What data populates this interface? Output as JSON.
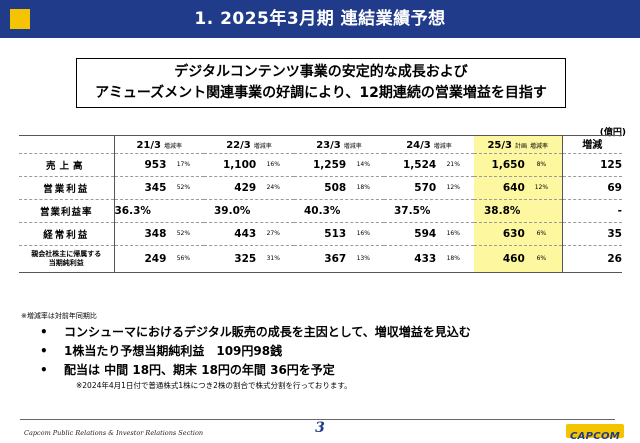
{
  "header": {
    "title": "1.  2025年3月期 連結業績予想",
    "accent": "#1f3b8a",
    "marker": "#f5c400"
  },
  "headline": {
    "line1": "デジタルコンテンツ事業の安定的な成長および",
    "line2": "アミューズメント関連事業の好調により、12期連続の営業増益を目指す"
  },
  "table": {
    "unit": "(億円)",
    "columns": [
      {
        "year": "21/3",
        "suffix": "増減率"
      },
      {
        "year": "22/3",
        "suffix": "増減率"
      },
      {
        "year": "23/3",
        "suffix": "増減率"
      },
      {
        "year": "24/3",
        "suffix": "増減率"
      },
      {
        "year": "25/3",
        "suffix": "計画",
        "suffix2": "増減率"
      }
    ],
    "diff_header": "増減",
    "rows": [
      {
        "label": "売上高",
        "cells": [
          [
            "953",
            "17%"
          ],
          [
            "1,100",
            "16%"
          ],
          [
            "1,259",
            "14%"
          ],
          [
            "1,524",
            "21%"
          ],
          [
            "1,650",
            "8%"
          ]
        ],
        "diff": "125"
      },
      {
        "label": "営業利益",
        "cells": [
          [
            "345",
            "52%"
          ],
          [
            "429",
            "24%"
          ],
          [
            "508",
            "18%"
          ],
          [
            "570",
            "12%"
          ],
          [
            "640",
            "12%"
          ]
        ],
        "diff": "69"
      },
      {
        "label": "営業利益率",
        "cells": [
          "36.3%",
          "39.0%",
          "40.3%",
          "37.5%",
          "38.8%"
        ],
        "diff": "-"
      },
      {
        "label": "経常利益",
        "cells": [
          [
            "348",
            "52%"
          ],
          [
            "443",
            "27%"
          ],
          [
            "513",
            "16%"
          ],
          [
            "594",
            "16%"
          ],
          [
            "630",
            "6%"
          ]
        ],
        "diff": "35"
      },
      {
        "label1": "親会社株主に帰属する",
        "label2": "当期純利益",
        "cells": [
          [
            "249",
            "56%"
          ],
          [
            "325",
            "31%"
          ],
          [
            "367",
            "13%"
          ],
          [
            "433",
            "18%"
          ],
          [
            "460",
            "6%"
          ]
        ],
        "diff": "26"
      }
    ],
    "highlight_color": "#fdf7a0"
  },
  "table_note": "※増減率は対前年同期比",
  "bullets": [
    "コンシューマにおけるデジタル販売の成長を主因として、増収増益を見込む",
    "1株当たり予想当期純利益　109円98銭",
    "配当は 中間 18円、期末 18円の年間 36円を予定"
  ],
  "bullet_symbol": "•",
  "dividend_note": "※2024年4月1日付で普通株式1株につき2株の割合で株式分割を行っております。",
  "footer": {
    "left": "Capcom Public Relations & Investor Relations Section",
    "page": "3",
    "logo": "CAPCOM"
  }
}
